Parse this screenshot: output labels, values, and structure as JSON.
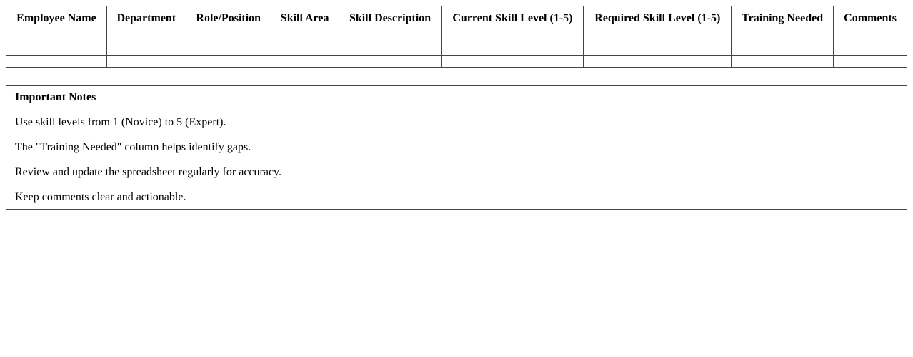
{
  "skills_table": {
    "columns": [
      "Employee Name",
      "Department",
      "Role/Position",
      "Skill Area",
      "Skill Description",
      "Current Skill Level (1-5)",
      "Required Skill Level (1-5)",
      "Training Needed",
      "Comments"
    ],
    "rows": [
      [
        "",
        "",
        "",
        "",
        "",
        "",
        "",
        "",
        ""
      ],
      [
        "",
        "",
        "",
        "",
        "",
        "",
        "",
        "",
        ""
      ],
      [
        "",
        "",
        "",
        "",
        "",
        "",
        "",
        "",
        ""
      ]
    ]
  },
  "notes": {
    "title": "Important Notes",
    "items": [
      "Use skill levels from 1 (Novice) to 5 (Expert).",
      "The \"Training Needed\" column helps identify gaps.",
      "Review and update the spreadsheet regularly for accuracy.",
      "Keep comments clear and actionable."
    ]
  }
}
